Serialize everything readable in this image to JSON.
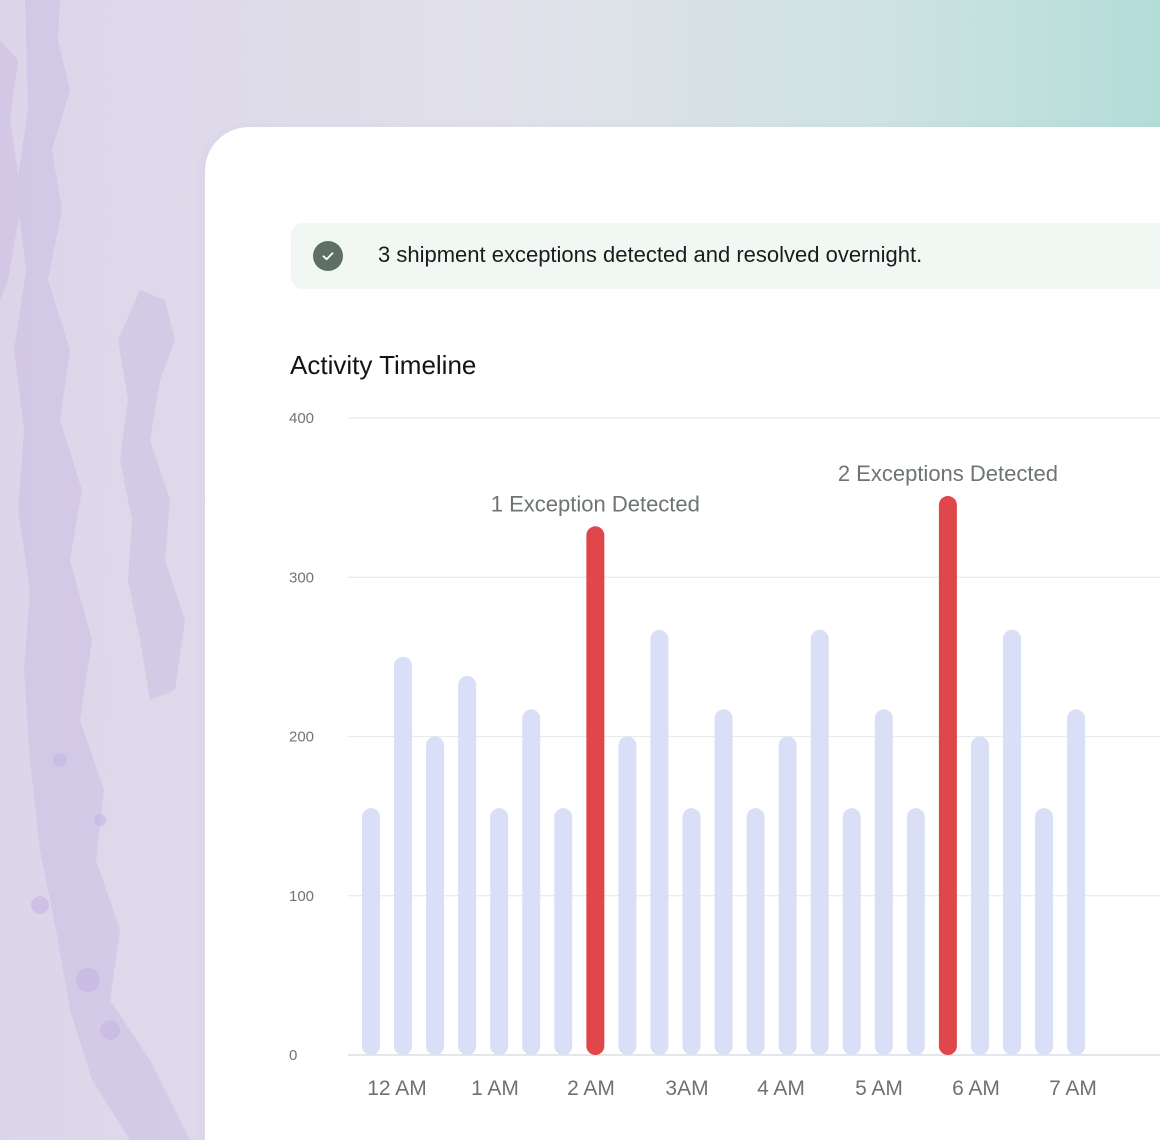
{
  "alert": {
    "message": "3 shipment exceptions detected and resolved overnight.",
    "icon": "check-circle-icon"
  },
  "chart_data": {
    "type": "bar",
    "title": "Activity Timeline",
    "xlabel": "",
    "ylabel": "",
    "ylim": [
      0,
      400
    ],
    "yticks": [
      0,
      100,
      200,
      300,
      400
    ],
    "grid": true,
    "legend": "none",
    "colors": {
      "normal": "#d8dff6",
      "exception": "#e0474b",
      "grid": "#e8eaeb",
      "axis": "#dcdfdf"
    },
    "x_tick_labels": [
      "12 AM",
      "1 AM",
      "2 AM",
      "3AM",
      "4 AM",
      "5 AM",
      "6 AM",
      "7 AM"
    ],
    "series": [
      {
        "values": [
          155,
          250,
          200,
          238,
          155,
          217,
          155,
          332,
          200,
          267,
          155,
          217,
          155,
          200,
          267,
          155,
          217,
          155,
          351,
          200,
          267,
          155,
          217
        ],
        "highlight": [
          false,
          false,
          false,
          false,
          false,
          false,
          false,
          true,
          false,
          false,
          false,
          false,
          false,
          false,
          false,
          false,
          false,
          false,
          true,
          false,
          false,
          false,
          false
        ]
      }
    ],
    "annotations": [
      {
        "bar_index": 7,
        "text": "1 Exception Detected"
      },
      {
        "bar_index": 18,
        "text": "2 Exceptions Detected"
      }
    ]
  }
}
